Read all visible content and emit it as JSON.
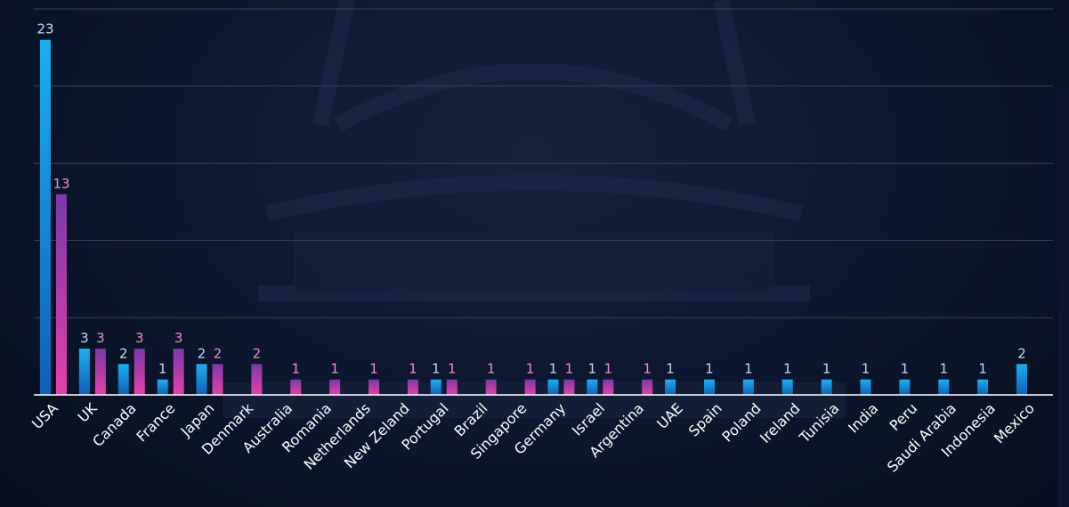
{
  "colors": {
    "series_a_top": "#1ab0f0",
    "series_a_bottom": "#0f5fb8",
    "series_b_top": "#7a3aa8",
    "series_b_bottom": "#e83fa8",
    "label_a": "#c9d8ef",
    "label_b": "#f08ec8",
    "grid": "#3a4150",
    "axis": "#ffffff"
  },
  "chart_data": {
    "type": "bar",
    "title": "",
    "xlabel": "",
    "ylabel": "",
    "ylim": [
      0,
      25
    ],
    "grid": true,
    "legend": "none",
    "categories": [
      "USA",
      "UK",
      "Canada",
      "France",
      "Japan",
      "Denmark",
      "Australia",
      "Romania",
      "Netherlands",
      "New Zeland",
      "Portugal",
      "Brazil",
      "Singapore",
      "Germany",
      "Israel",
      "Argentina",
      "UAE",
      "Spain",
      "Poland",
      "Ireland",
      "Tunisia",
      "India",
      "Peru",
      "Saudi Arabia",
      "Indonesia",
      "Mexico"
    ],
    "series": [
      {
        "values": [
          23,
          3,
          2,
          1,
          2,
          null,
          null,
          null,
          null,
          null,
          1,
          null,
          null,
          1,
          1,
          null,
          1,
          1,
          1,
          1,
          1,
          1,
          1,
          1,
          1,
          2
        ]
      },
      {
        "values": [
          13,
          3,
          3,
          3,
          2,
          2,
          1,
          1,
          1,
          1,
          1,
          1,
          1,
          1,
          1,
          1,
          null,
          null,
          null,
          null,
          null,
          null,
          null,
          null,
          null,
          null
        ]
      }
    ]
  }
}
